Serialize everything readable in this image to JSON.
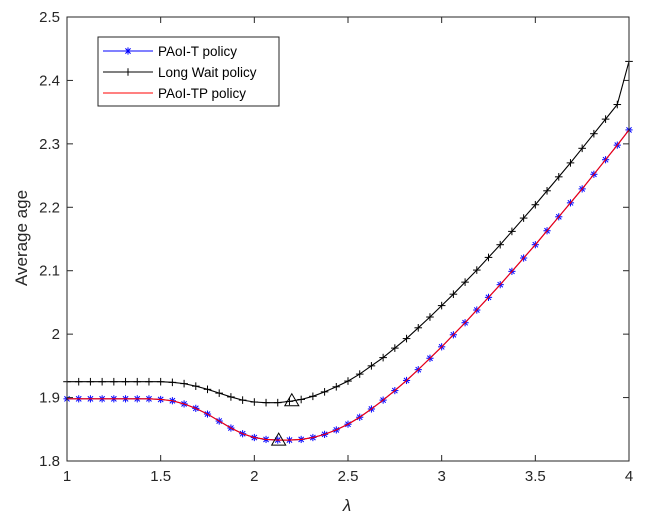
{
  "chart_data": {
    "type": "line",
    "title": "",
    "xlabel": "λ",
    "ylabel": "Average age",
    "xlim": [
      1,
      4
    ],
    "ylim": [
      1.8,
      2.5
    ],
    "xticks": [
      1,
      1.5,
      2,
      2.5,
      3,
      3.5,
      4
    ],
    "xtick_labels": [
      "1",
      "1.5",
      "2",
      "2.5",
      "3",
      "3.5",
      "4"
    ],
    "yticks": [
      1.8,
      1.9,
      2,
      2.1,
      2.2,
      2.3,
      2.4,
      2.5
    ],
    "ytick_labels": [
      "1.8",
      "1.9",
      "2",
      "2.1",
      "2.2",
      "2.3",
      "2.4",
      "2.5"
    ],
    "grid": false,
    "legend_position": "top-left",
    "x": [
      1.0,
      1.0625,
      1.125,
      1.1875,
      1.25,
      1.3125,
      1.375,
      1.4375,
      1.5,
      1.5625,
      1.625,
      1.6875,
      1.75,
      1.8125,
      1.875,
      1.9375,
      2.0,
      2.0625,
      2.125,
      2.1875,
      2.25,
      2.3125,
      2.375,
      2.4375,
      2.5,
      2.5625,
      2.625,
      2.6875,
      2.75,
      2.8125,
      2.875,
      2.9375,
      3.0,
      3.0625,
      3.125,
      3.1875,
      3.25,
      3.3125,
      3.375,
      3.4375,
      3.5,
      3.5625,
      3.625,
      3.6875,
      3.75,
      3.8125,
      3.875,
      3.9375,
      4.0
    ],
    "series": [
      {
        "name": "PAoI-T policy",
        "color": "#0000ff",
        "marker": "asterisk",
        "values": [
          1.898,
          1.898,
          1.898,
          1.898,
          1.898,
          1.898,
          1.898,
          1.898,
          1.897,
          1.895,
          1.89,
          1.883,
          1.874,
          1.863,
          1.852,
          1.843,
          1.837,
          1.834,
          1.833,
          1.833,
          1.834,
          1.837,
          1.842,
          1.849,
          1.858,
          1.869,
          1.882,
          1.896,
          1.911,
          1.927,
          1.944,
          1.962,
          1.98,
          1.999,
          2.018,
          2.038,
          2.058,
          2.078,
          2.099,
          2.12,
          2.141,
          2.163,
          2.185,
          2.207,
          2.229,
          2.252,
          2.275,
          2.298,
          2.322
        ]
      },
      {
        "name": "Long Wait policy",
        "color": "#000000",
        "marker": "plus",
        "values": [
          1.925,
          1.925,
          1.925,
          1.925,
          1.925,
          1.925,
          1.925,
          1.925,
          1.925,
          1.924,
          1.922,
          1.918,
          1.913,
          1.907,
          1.901,
          1.896,
          1.893,
          1.892,
          1.892,
          1.894,
          1.897,
          1.902,
          1.909,
          1.917,
          1.926,
          1.937,
          1.95,
          1.963,
          1.978,
          1.993,
          2.01,
          2.027,
          2.045,
          2.063,
          2.082,
          2.101,
          2.121,
          2.141,
          2.162,
          2.183,
          2.204,
          2.226,
          2.248,
          2.27,
          2.293,
          2.316,
          2.339,
          2.362,
          2.43
        ]
      },
      {
        "name": "PAoI-TP policy",
        "color": "#ff0000",
        "marker": "none",
        "values": [
          1.898,
          1.898,
          1.898,
          1.898,
          1.898,
          1.898,
          1.898,
          1.898,
          1.897,
          1.895,
          1.89,
          1.883,
          1.874,
          1.863,
          1.852,
          1.843,
          1.837,
          1.834,
          1.833,
          1.833,
          1.834,
          1.837,
          1.842,
          1.849,
          1.858,
          1.869,
          1.882,
          1.896,
          1.911,
          1.927,
          1.944,
          1.962,
          1.98,
          1.999,
          2.018,
          2.038,
          2.058,
          2.078,
          2.099,
          2.12,
          2.141,
          2.163,
          2.185,
          2.207,
          2.229,
          2.252,
          2.275,
          2.298,
          2.322
        ]
      }
    ],
    "annotations": [
      {
        "label": "minimum PAoI-T",
        "marker": "triangle",
        "x": 2.13,
        "y": 1.833
      },
      {
        "label": "minimum Long Wait",
        "marker": "triangle",
        "x": 2.2,
        "y": 1.895
      }
    ]
  }
}
